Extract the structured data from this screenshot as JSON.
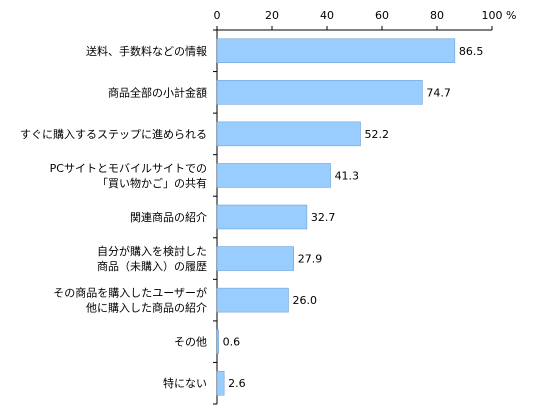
{
  "chart_data": {
    "type": "bar",
    "orientation": "horizontal",
    "categories": [
      [
        "送料、手数料などの情報"
      ],
      [
        "商品全部の小計金額"
      ],
      [
        "すぐに購入するステップに進められる"
      ],
      [
        "PCサイトとモバイルサイトでの",
        "「買い物かご」の共有"
      ],
      [
        "関連商品の紹介"
      ],
      [
        "自分が購入を検討した",
        "商品（未購入）の履歴"
      ],
      [
        "その商品を購入したユーザーが",
        "他に購入した商品の紹介"
      ],
      [
        "その他"
      ],
      [
        "特にない"
      ]
    ],
    "values": [
      86.5,
      74.7,
      52.2,
      41.3,
      32.7,
      27.9,
      26.0,
      0.6,
      2.6
    ],
    "value_labels": [
      "86.5",
      "74.7",
      "52.2",
      "41.3",
      "32.7",
      "27.9",
      "26.0",
      "0.6",
      "2.6"
    ],
    "xlim": [
      0,
      100
    ],
    "x_ticks": [
      0,
      20,
      40,
      60,
      80,
      100
    ],
    "x_tick_labels": [
      "0",
      "20",
      "40",
      "60",
      "80",
      "100"
    ],
    "x_unit": "%",
    "axis_position": "top",
    "grid": false,
    "legend": "none",
    "bar_color": "#99ccff",
    "bar_edge_color": "#6699cc",
    "axis_color": "#000000"
  }
}
